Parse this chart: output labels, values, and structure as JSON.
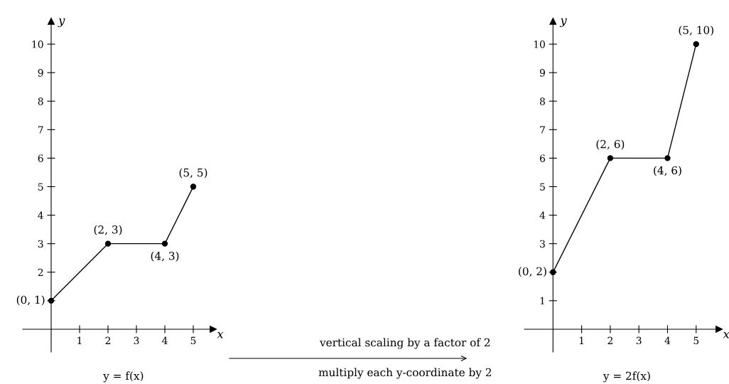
{
  "chart_data": [
    {
      "type": "line",
      "title": "y = f(x)",
      "xlabel": "x",
      "ylabel": "y",
      "x": [
        0,
        2,
        4,
        5
      ],
      "values": [
        1,
        3,
        3,
        5
      ],
      "color": "#000000",
      "marker": "circle",
      "value_labels": [
        "(0, 1)",
        "(2, 3)",
        "(4, 3)",
        "(5, 5)"
      ],
      "xlim": [
        -1,
        5.7
      ],
      "ylim": [
        -0.8,
        10.8
      ],
      "xticks": [
        1,
        2,
        3,
        4,
        5
      ],
      "yticks": [
        {
          "value": 1,
          "label": null
        },
        2,
        3,
        4,
        5,
        6,
        7,
        8,
        9,
        10
      ],
      "grid": false,
      "annotations": [
        "vertical scaling by a factor of 2",
        "multiply each y-coordinate by 2"
      ]
    },
    {
      "type": "line",
      "title": "y = 2f(x)",
      "xlabel": "x",
      "ylabel": "y",
      "x": [
        0,
        2,
        4,
        5
      ],
      "values": [
        2,
        6,
        6,
        10
      ],
      "color": "#000000",
      "marker": "circle",
      "value_labels": [
        "(0, 2)",
        "(2, 6)",
        "(4, 6)",
        "(5, 10)"
      ],
      "xlim": [
        -1,
        5.8
      ],
      "ylim": [
        -0.8,
        10.8
      ],
      "xticks": [
        1,
        2,
        3,
        4,
        5
      ],
      "yticks": [
        1,
        {
          "value": 2,
          "label": null
        },
        3,
        4,
        5,
        6,
        7,
        8,
        9,
        10
      ],
      "grid": false
    }
  ]
}
